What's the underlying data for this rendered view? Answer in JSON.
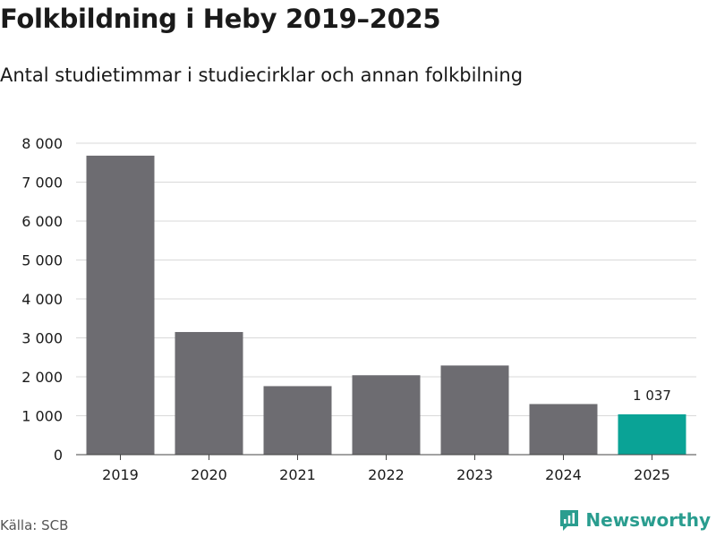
{
  "header": {
    "title": "Folkbildning i Heby 2019–2025",
    "subtitle": "Antal studietimmar i studiecirklar och annan folkbilning"
  },
  "footer": {
    "source": "Källa: SCB",
    "brand": "Newsworthy",
    "brand_icon": "newsworthy-logo-icon"
  },
  "colors": {
    "bar": "#6d6c71",
    "highlight": "#0aa396",
    "grid": "#d9d9d9",
    "brand": "#2a9d8f"
  },
  "chart_data": {
    "type": "bar",
    "title": "Folkbildning i Heby 2019–2025",
    "subtitle": "Antal studietimmar i studiecirklar och annan folkbilning",
    "xlabel": "",
    "ylabel": "",
    "categories": [
      "2019",
      "2020",
      "2021",
      "2022",
      "2023",
      "2024",
      "2025"
    ],
    "values": [
      7680,
      3150,
      1760,
      2040,
      2290,
      1300,
      1037
    ],
    "highlight_index": 6,
    "data_labels": [
      {
        "index": 6,
        "text": "1 037"
      }
    ],
    "ylim": [
      0,
      8000
    ],
    "yticks": [
      0,
      1000,
      2000,
      3000,
      4000,
      5000,
      6000,
      7000,
      8000
    ],
    "ytick_labels": [
      "0",
      "1 000",
      "2 000",
      "3 000",
      "4 000",
      "5 000",
      "6 000",
      "7 000",
      "8 000"
    ],
    "grid": true
  }
}
